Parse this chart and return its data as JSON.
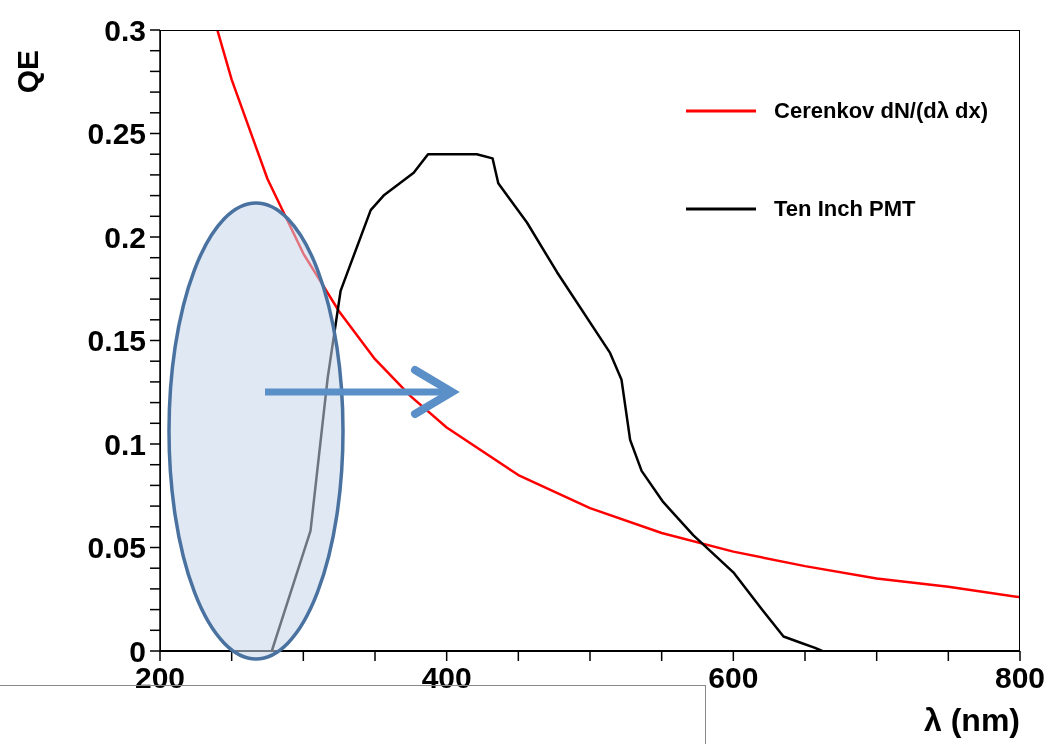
{
  "chart_data": {
    "type": "line",
    "xlabel": "λ (nm)",
    "ylabel": "QE",
    "xlim": [
      200,
      800
    ],
    "ylim": [
      0,
      0.3
    ],
    "xticks": [
      200,
      {
        "value": 250,
        "label": null
      },
      {
        "value": 300,
        "label": null
      },
      {
        "value": 350,
        "label": null
      },
      400,
      {
        "value": 450,
        "label": null
      },
      {
        "value": 500,
        "label": null
      },
      {
        "value": 550,
        "label": null
      },
      600,
      {
        "value": 650,
        "label": null
      },
      {
        "value": 700,
        "label": null
      },
      {
        "value": 750,
        "label": null
      },
      800
    ],
    "yticks": [
      0,
      {
        "value": 0.01,
        "label": null
      },
      {
        "value": 0.02,
        "label": null
      },
      {
        "value": 0.03,
        "label": null
      },
      {
        "value": 0.04,
        "label": null
      },
      0.05,
      {
        "value": 0.06,
        "label": null
      },
      {
        "value": 0.07,
        "label": null
      },
      {
        "value": 0.08,
        "label": null
      },
      {
        "value": 0.09,
        "label": null
      },
      0.1,
      {
        "value": 0.11,
        "label": null
      },
      {
        "value": 0.12,
        "label": null
      },
      {
        "value": 0.13,
        "label": null
      },
      {
        "value": 0.14,
        "label": null
      },
      0.15,
      {
        "value": 0.16,
        "label": null
      },
      {
        "value": 0.17,
        "label": null
      },
      {
        "value": 0.18,
        "label": null
      },
      {
        "value": 0.19,
        "label": null
      },
      0.2,
      {
        "value": 0.21,
        "label": null
      },
      {
        "value": 0.22,
        "label": null
      },
      {
        "value": 0.23,
        "label": null
      },
      {
        "value": 0.24,
        "label": null
      },
      0.25,
      {
        "value": 0.26,
        "label": null
      },
      {
        "value": 0.27,
        "label": null
      },
      {
        "value": 0.28,
        "label": null
      },
      {
        "value": 0.29,
        "label": null
      },
      0.3
    ],
    "grid": false,
    "legend": "top right",
    "marker": "none",
    "line_style": "solid",
    "series": [
      {
        "name": "Cerenkov dN/(dλ dx)",
        "color": "#ff0000",
        "x": [
          240,
          250,
          275,
          300,
          325,
          350,
          375,
          400,
          450,
          500,
          550,
          600,
          650,
          700,
          750,
          800
        ],
        "values": [
          0.3,
          0.276,
          0.228,
          0.192,
          0.164,
          0.141,
          0.123,
          0.108,
          0.085,
          0.069,
          0.057,
          0.048,
          0.041,
          0.035,
          0.031,
          0.026
        ]
      },
      {
        "name": "Ten Inch PMT",
        "color": "#000000",
        "x": [
          278,
          305,
          317,
          326,
          333,
          347,
          356,
          377,
          387,
          421,
          432,
          436,
          456,
          477,
          514,
          522,
          528,
          536,
          551,
          572,
          600,
          620,
          635,
          647,
          657,
          662
        ],
        "values": [
          0,
          0.058,
          0.132,
          0.174,
          0.187,
          0.213,
          0.22,
          0.231,
          0.24,
          0.24,
          0.238,
          0.226,
          0.207,
          0.183,
          0.144,
          0.131,
          0.102,
          0.087,
          0.072,
          0.056,
          0.038,
          0.02,
          0.007,
          0.004,
          0.0015,
          0
        ]
      }
    ]
  }
}
